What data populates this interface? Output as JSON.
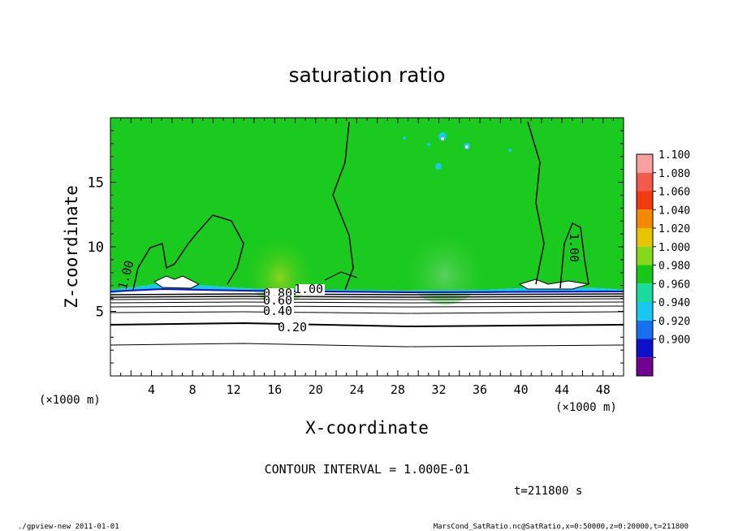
{
  "chart_data": {
    "type": "heatmap",
    "title": "saturation ratio",
    "xlabel": "X-coordinate",
    "ylabel": "Z-coordinate",
    "x_unit": "(×1000 m)",
    "y_unit": "(×1000 m)",
    "xlim": [
      0,
      50
    ],
    "ylim": [
      0,
      20
    ],
    "x_ticks": [
      "4",
      "8",
      "12",
      "16",
      "20",
      "24",
      "28",
      "32",
      "36",
      "40",
      "44",
      "48"
    ],
    "y_ticks": [
      "5",
      "10",
      "15"
    ],
    "colorbar": {
      "levels": [
        "1.100",
        "1.080",
        "1.060",
        "1.040",
        "1.020",
        "1.000",
        "0.980",
        "0.960",
        "0.940",
        "0.920",
        "0.900"
      ],
      "colors": [
        "#f6a0a0",
        "#f35a4c",
        "#f13a10",
        "#f38a00",
        "#e8c400",
        "#86d81c",
        "#18c818",
        "#18dc9c",
        "#18c8ee",
        "#1870f0",
        "#1010c8",
        "#700090"
      ]
    },
    "contour_labels": [
      "1.00",
      "1.00",
      "1.00",
      "0.80",
      "0.60",
      "0.40",
      "0.20"
    ],
    "contour_interval": "CONTOUR INTERVAL = 1.000E-01",
    "time": "t=211800 s",
    "footer_left": "./gpview-new  2011-01-01",
    "footer_right": "MarsCond_SatRatio.nc@SatRatio,x=0:50000,z=0:20000,t=211800"
  }
}
